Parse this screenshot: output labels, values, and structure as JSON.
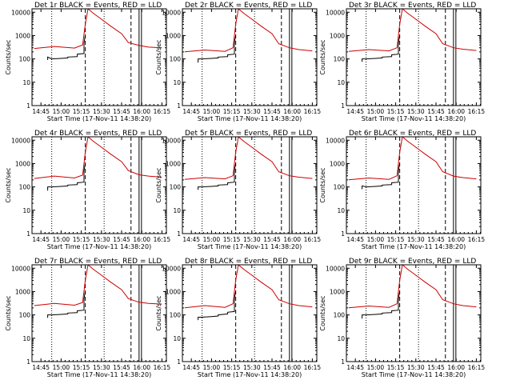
{
  "figure": {
    "xlabel": "Start Time (17-Nov-11 14:38:20)",
    "ylabel": "Counts/sec",
    "xticks": [
      "14:45",
      "15:00",
      "15:15",
      "15:30",
      "15:45",
      "16:00",
      "16:15"
    ],
    "yticks": [
      "1",
      "10",
      "100",
      "1000",
      "10000"
    ],
    "colors": {
      "events": "#000000",
      "lld": "#cc0000"
    }
  },
  "chart_data": [
    {
      "type": "line",
      "title": "Det 1r BLACK = Events, RED = LLD",
      "xlabel": "Start Time (17-Nov-11 14:38:20)",
      "ylabel": "Counts/sec",
      "ylog": true,
      "ylim": [
        1,
        14000
      ],
      "xlim": [
        "14:38:20",
        "16:18:20"
      ],
      "grid": false,
      "vlines": {
        "dotted": [
          "14:53",
          "15:32"
        ],
        "dashed": [
          "15:18",
          "15:52"
        ],
        "solid": [
          "15:58"
        ]
      },
      "series": [
        {
          "name": "BLACK = Events",
          "color": "#000000",
          "x": [
            "14:50",
            "14:50",
            "14:53",
            "15:00",
            "15:05",
            "15:05",
            "15:12",
            "15:12",
            "15:17",
            "15:17",
            "15:18"
          ],
          "y": [
            90,
            120,
            100,
            105,
            110,
            120,
            125,
            160,
            170,
            500,
            1000
          ]
        },
        {
          "name": "RED = LLD",
          "color": "#cc0000",
          "x": [
            "14:40",
            "14:55",
            "15:10",
            "15:16",
            "15:18",
            "15:20",
            "15:24",
            "15:30",
            "15:37",
            "15:45",
            "15:50",
            "15:58",
            "16:05",
            "16:15"
          ],
          "y": [
            280,
            340,
            290,
            400,
            3000,
            14000,
            9000,
            5000,
            2500,
            1200,
            500,
            380,
            320,
            300
          ]
        }
      ]
    },
    {
      "type": "line",
      "title": "Det 2r BLACK = Events, RED = LLD",
      "xlabel": "Start Time (17-Nov-11 14:38:20)",
      "ylabel": "Counts/sec",
      "ylog": true,
      "ylim": [
        1,
        14000
      ],
      "xlim": [
        "14:38:20",
        "16:18:20"
      ],
      "grid": false,
      "vlines": {
        "dotted": [
          "14:53",
          "15:32"
        ],
        "dashed": [
          "15:18",
          "15:52"
        ],
        "solid": [
          "15:58"
        ]
      },
      "series": [
        {
          "name": "BLACK = Events",
          "color": "#000000",
          "x": [
            "14:50",
            "14:50",
            "14:53",
            "15:00",
            "15:05",
            "15:05",
            "15:12",
            "15:12",
            "15:17",
            "15:17",
            "15:18"
          ],
          "y": [
            70,
            100,
            100,
            105,
            110,
            120,
            125,
            150,
            160,
            500,
            1000
          ]
        },
        {
          "name": "RED = LLD",
          "color": "#cc0000",
          "x": [
            "14:40",
            "14:55",
            "15:10",
            "15:16",
            "15:18",
            "15:20",
            "15:24",
            "15:30",
            "15:37",
            "15:45",
            "15:50",
            "15:58",
            "16:05",
            "16:15"
          ],
          "y": [
            200,
            240,
            210,
            300,
            3000,
            14000,
            9000,
            5000,
            2500,
            1200,
            450,
            300,
            250,
            220
          ]
        }
      ]
    },
    {
      "type": "line",
      "title": "Det 3r BLACK = Events, RED = LLD",
      "xlabel": "Start Time (17-Nov-11 14:38:20)",
      "ylabel": "Counts/sec",
      "ylog": true,
      "ylim": [
        1,
        14000
      ],
      "xlim": [
        "14:38:20",
        "16:18:20"
      ],
      "grid": false,
      "vlines": {
        "dotted": [
          "14:53",
          "15:32"
        ],
        "dashed": [
          "15:18",
          "15:52"
        ],
        "solid": [
          "15:58"
        ]
      },
      "series": [
        {
          "name": "BLACK = Events",
          "color": "#000000",
          "x": [
            "14:50",
            "14:50",
            "14:53",
            "15:00",
            "15:05",
            "15:05",
            "15:12",
            "15:12",
            "15:17",
            "15:17",
            "15:18"
          ],
          "y": [
            75,
            100,
            100,
            105,
            110,
            120,
            125,
            150,
            160,
            500,
            1000
          ]
        },
        {
          "name": "RED = LLD",
          "color": "#cc0000",
          "x": [
            "14:40",
            "14:55",
            "15:10",
            "15:16",
            "15:18",
            "15:20",
            "15:24",
            "15:30",
            "15:37",
            "15:45",
            "15:50",
            "15:58",
            "16:05",
            "16:15"
          ],
          "y": [
            210,
            250,
            220,
            300,
            3000,
            14000,
            9000,
            5000,
            2500,
            1200,
            450,
            300,
            260,
            230
          ]
        }
      ]
    },
    {
      "type": "line",
      "title": "Det 4r BLACK = Events, RED = LLD",
      "xlabel": "Start Time (17-Nov-11 14:38:20)",
      "ylabel": "Counts/sec",
      "ylog": true,
      "ylim": [
        1,
        14000
      ],
      "xlim": [
        "14:38:20",
        "16:18:20"
      ],
      "grid": false,
      "vlines": {
        "dotted": [
          "14:53",
          "15:32"
        ],
        "dashed": [
          "15:18",
          "15:52"
        ],
        "solid": [
          "15:58"
        ]
      },
      "series": [
        {
          "name": "BLACK = Events",
          "color": "#000000",
          "x": [
            "14:50",
            "14:50",
            "14:53",
            "15:00",
            "15:05",
            "15:05",
            "15:12",
            "15:12",
            "15:17",
            "15:17",
            "15:18"
          ],
          "y": [
            70,
            100,
            100,
            105,
            110,
            120,
            125,
            150,
            160,
            500,
            1000
          ]
        },
        {
          "name": "RED = LLD",
          "color": "#cc0000",
          "x": [
            "14:40",
            "14:55",
            "15:10",
            "15:16",
            "15:18",
            "15:20",
            "15:24",
            "15:30",
            "15:37",
            "15:45",
            "15:50",
            "15:58",
            "16:05",
            "16:15"
          ],
          "y": [
            230,
            290,
            240,
            320,
            3000,
            14000,
            9000,
            5000,
            2500,
            1200,
            500,
            330,
            290,
            260
          ]
        }
      ]
    },
    {
      "type": "line",
      "title": "Det 5r BLACK = Events, RED = LLD",
      "xlabel": "Start Time (17-Nov-11 14:38:20)",
      "ylabel": "Counts/sec",
      "ylog": true,
      "ylim": [
        1,
        14000
      ],
      "xlim": [
        "14:38:20",
        "16:18:20"
      ],
      "grid": false,
      "vlines": {
        "dotted": [
          "14:53",
          "15:32"
        ],
        "dashed": [
          "15:18",
          "15:52"
        ],
        "solid": [
          "15:58"
        ]
      },
      "series": [
        {
          "name": "BLACK = Events",
          "color": "#000000",
          "x": [
            "14:50",
            "14:50",
            "14:53",
            "15:00",
            "15:05",
            "15:05",
            "15:12",
            "15:12",
            "15:17",
            "15:17",
            "15:18"
          ],
          "y": [
            75,
            100,
            100,
            105,
            110,
            120,
            125,
            150,
            160,
            500,
            1000
          ]
        },
        {
          "name": "RED = LLD",
          "color": "#cc0000",
          "x": [
            "14:40",
            "14:55",
            "15:10",
            "15:16",
            "15:18",
            "15:20",
            "15:24",
            "15:30",
            "15:37",
            "15:45",
            "15:50",
            "15:58",
            "16:05",
            "16:15"
          ],
          "y": [
            210,
            250,
            220,
            300,
            3000,
            14000,
            9000,
            5000,
            2500,
            1200,
            450,
            300,
            260,
            230
          ]
        }
      ]
    },
    {
      "type": "line",
      "title": "Det 6r BLACK = Events, RED = LLD",
      "xlabel": "Start Time (17-Nov-11 14:38:20)",
      "ylabel": "Counts/sec",
      "ylog": true,
      "ylim": [
        1,
        14000
      ],
      "xlim": [
        "14:38:20",
        "16:18:20"
      ],
      "grid": false,
      "vlines": {
        "dotted": [
          "14:53",
          "15:32"
        ],
        "dashed": [
          "15:18",
          "15:52"
        ],
        "solid": [
          "15:58"
        ]
      },
      "series": [
        {
          "name": "BLACK = Events",
          "color": "#000000",
          "x": [
            "14:50",
            "14:50",
            "14:53",
            "15:00",
            "15:05",
            "15:05",
            "15:12",
            "15:12",
            "15:17",
            "15:17",
            "15:18"
          ],
          "y": [
            80,
            110,
            100,
            105,
            110,
            120,
            125,
            150,
            160,
            500,
            1000
          ]
        },
        {
          "name": "RED = LLD",
          "color": "#cc0000",
          "x": [
            "14:40",
            "14:55",
            "15:10",
            "15:16",
            "15:18",
            "15:20",
            "15:24",
            "15:30",
            "15:37",
            "15:45",
            "15:50",
            "15:58",
            "16:05",
            "16:15"
          ],
          "y": [
            200,
            240,
            210,
            300,
            3000,
            14000,
            9000,
            5000,
            2500,
            1200,
            450,
            290,
            250,
            220
          ]
        }
      ]
    },
    {
      "type": "line",
      "title": "Det 7r BLACK = Events, RED = LLD",
      "xlabel": "Start Time (17-Nov-11 14:38:20)",
      "ylabel": "Counts/sec",
      "ylog": true,
      "ylim": [
        1,
        14000
      ],
      "xlim": [
        "14:38:20",
        "16:18:20"
      ],
      "grid": false,
      "vlines": {
        "dotted": [
          "14:53",
          "15:32"
        ],
        "dashed": [
          "15:18",
          "15:52"
        ],
        "solid": [
          "15:58"
        ]
      },
      "series": [
        {
          "name": "BLACK = Events",
          "color": "#000000",
          "x": [
            "14:50",
            "14:50",
            "14:53",
            "15:00",
            "15:05",
            "15:05",
            "15:12",
            "15:12",
            "15:17",
            "15:17",
            "15:18"
          ],
          "y": [
            75,
            100,
            100,
            105,
            110,
            120,
            125,
            150,
            160,
            500,
            1000
          ]
        },
        {
          "name": "RED = LLD",
          "color": "#cc0000",
          "x": [
            "14:40",
            "14:55",
            "15:10",
            "15:16",
            "15:18",
            "15:20",
            "15:24",
            "15:30",
            "15:37",
            "15:45",
            "15:50",
            "15:58",
            "16:05",
            "16:15"
          ],
          "y": [
            250,
            310,
            260,
            340,
            3000,
            14000,
            9000,
            5000,
            2500,
            1200,
            500,
            350,
            310,
            290
          ]
        }
      ]
    },
    {
      "type": "line",
      "title": "Det 8r BLACK = Events, RED = LLD",
      "xlabel": "Start Time (17-Nov-11 14:38:20)",
      "ylabel": "Counts/sec",
      "ylog": true,
      "ylim": [
        1,
        14000
      ],
      "xlim": [
        "14:38:20",
        "16:18:20"
      ],
      "grid": false,
      "vlines": {
        "dotted": [
          "14:53",
          "15:32"
        ],
        "dashed": [
          "15:18",
          "15:52"
        ],
        "solid": [
          "15:58"
        ]
      },
      "series": [
        {
          "name": "BLACK = Events",
          "color": "#000000",
          "x": [
            "14:50",
            "14:50",
            "14:53",
            "15:00",
            "15:05",
            "15:05",
            "15:12",
            "15:12",
            "15:17",
            "15:17",
            "15:18"
          ],
          "y": [
            60,
            80,
            80,
            85,
            90,
            100,
            110,
            130,
            140,
            500,
            1000
          ]
        },
        {
          "name": "RED = LLD",
          "color": "#cc0000",
          "x": [
            "14:40",
            "14:55",
            "15:10",
            "15:16",
            "15:18",
            "15:20",
            "15:24",
            "15:30",
            "15:37",
            "15:45",
            "15:50",
            "15:58",
            "16:05",
            "16:15"
          ],
          "y": [
            200,
            250,
            210,
            300,
            3000,
            14000,
            9000,
            5000,
            2500,
            1200,
            450,
            300,
            250,
            220
          ]
        }
      ]
    },
    {
      "type": "line",
      "title": "Det 9r BLACK = Events, RED = LLD",
      "xlabel": "Start Time (17-Nov-11 14:38:20)",
      "ylabel": "Counts/sec",
      "ylog": true,
      "ylim": [
        1,
        14000
      ],
      "xlim": [
        "14:38:20",
        "16:18:20"
      ],
      "grid": false,
      "vlines": {
        "dotted": [
          "14:53",
          "15:32"
        ],
        "dashed": [
          "15:18",
          "15:52"
        ],
        "solid": [
          "15:58"
        ]
      },
      "series": [
        {
          "name": "BLACK = Events",
          "color": "#000000",
          "x": [
            "14:50",
            "14:50",
            "14:53",
            "15:00",
            "15:05",
            "15:05",
            "15:12",
            "15:12",
            "15:17",
            "15:17",
            "15:18"
          ],
          "y": [
            70,
            100,
            100,
            105,
            110,
            120,
            125,
            150,
            160,
            500,
            1000
          ]
        },
        {
          "name": "RED = LLD",
          "color": "#cc0000",
          "x": [
            "14:40",
            "14:55",
            "15:10",
            "15:16",
            "15:18",
            "15:20",
            "15:24",
            "15:30",
            "15:37",
            "15:45",
            "15:50",
            "15:58",
            "16:05",
            "16:15"
          ],
          "y": [
            200,
            240,
            210,
            300,
            3000,
            14000,
            9000,
            5000,
            2500,
            1200,
            450,
            300,
            250,
            220
          ]
        }
      ]
    }
  ]
}
